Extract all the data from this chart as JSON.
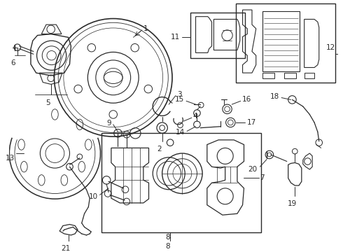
{
  "bg_color": "#ffffff",
  "line_color": "#2a2a2a",
  "figsize": [
    4.9,
    3.6
  ],
  "dpi": 100,
  "label_fs": 7.5
}
